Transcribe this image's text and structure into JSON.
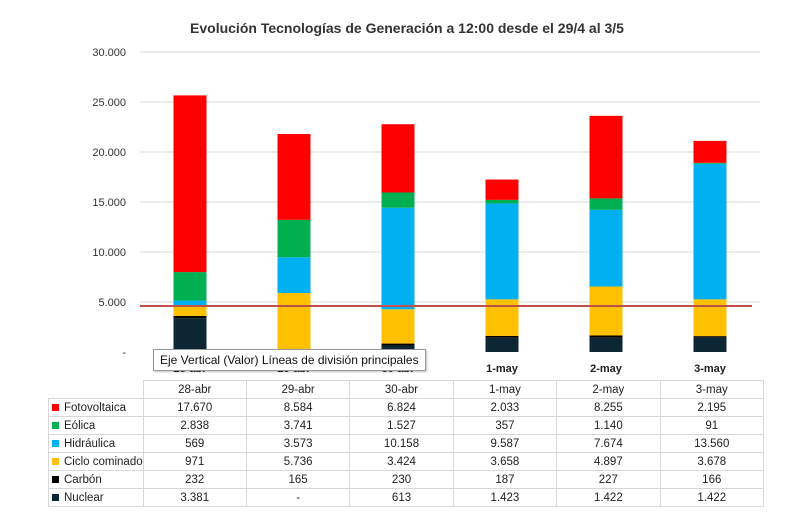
{
  "chart_data": {
    "type": "bar",
    "stacked": true,
    "title": "Evolución Tecnologías de Generación a 12:00  desde el 29/4 al 3/5",
    "categories": [
      "28-abr",
      "29-abr",
      "30-abr",
      "1-may",
      "2-may",
      "3-may"
    ],
    "yticks": [
      "-",
      "5.000",
      "10.000",
      "15.000",
      "20.000",
      "25.000",
      "30.000"
    ],
    "ylim": [
      0,
      30000
    ],
    "grid": true,
    "reference_line": 4600,
    "reference_line_color": "#c0504d",
    "series": [
      {
        "name": "Nuclear",
        "color": "#0d2633",
        "values": [
          3381,
          0,
          613,
          1423,
          1422,
          1422
        ],
        "labels": [
          "3.381",
          "-",
          "613",
          "1.423",
          "1.422",
          "1.422"
        ]
      },
      {
        "name": "Carbón",
        "color": "#000000",
        "values": [
          232,
          165,
          230,
          187,
          227,
          166
        ],
        "labels": [
          "232",
          "165",
          "230",
          "187",
          "227",
          "166"
        ]
      },
      {
        "name": "Ciclo cominado",
        "color": "#ffc000",
        "values": [
          971,
          5736,
          3424,
          3658,
          4897,
          3678
        ],
        "labels": [
          "971",
          "5.736",
          "3.424",
          "3.658",
          "4.897",
          "3.678"
        ]
      },
      {
        "name": "Hidráulica",
        "color": "#00b0f0",
        "values": [
          569,
          3573,
          10158,
          9587,
          7674,
          13560
        ],
        "labels": [
          "569",
          "3.573",
          "10.158",
          "9.587",
          "7.674",
          "13.560"
        ]
      },
      {
        "name": "Eólica",
        "color": "#00b050",
        "values": [
          2838,
          3741,
          1527,
          357,
          1140,
          91
        ],
        "labels": [
          "2.838",
          "3.741",
          "1.527",
          "357",
          "1.140",
          "91"
        ]
      },
      {
        "name": "Fotovoltaica",
        "color": "#ff0000",
        "values": [
          17670,
          8584,
          6824,
          2033,
          8255,
          2195
        ],
        "labels": [
          "17.670",
          "8.584",
          "6.824",
          "2.033",
          "8.255",
          "2.195"
        ]
      }
    ]
  },
  "axis_categories_visible": [
    "28-abr",
    "29-abr",
    "30-abr",
    "1-may",
    "2-may",
    "3-may"
  ],
  "tooltip": "Eje Vertical (Valor)  Líneas de división principales"
}
